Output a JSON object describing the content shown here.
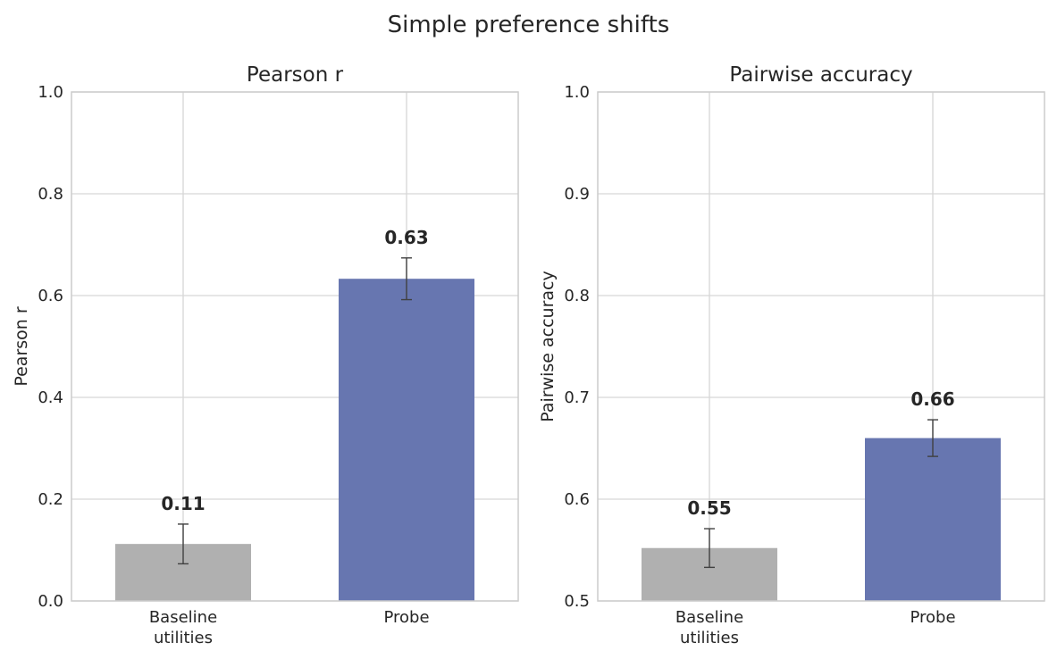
{
  "figure": {
    "suptitle": "Simple preference shifts"
  },
  "chart_data": [
    {
      "type": "bar",
      "title": "Pearson r",
      "ylabel": "Pearson r",
      "xlabel": "",
      "ylim": [
        0.0,
        1.0
      ],
      "yticks": [
        0.0,
        0.2,
        0.4,
        0.6,
        0.8,
        1.0
      ],
      "ytick_labels": [
        "0.0",
        "0.2",
        "0.4",
        "0.6",
        "0.8",
        "1.0"
      ],
      "categories": [
        [
          "Baseline",
          "utilities"
        ],
        [
          "Probe"
        ]
      ],
      "values": [
        0.112,
        0.633
      ],
      "error": [
        0.039,
        0.041
      ],
      "data_labels": [
        "0.11",
        "0.63"
      ],
      "colors": [
        "#b0b0b0",
        "#6776b0"
      ],
      "grid": true
    },
    {
      "type": "bar",
      "title": "Pairwise accuracy",
      "ylabel": "Pairwise accuracy",
      "xlabel": "",
      "ylim": [
        0.5,
        1.0
      ],
      "yticks": [
        0.5,
        0.6,
        0.7,
        0.8,
        0.9,
        1.0
      ],
      "ytick_labels": [
        "0.5",
        "0.6",
        "0.7",
        "0.8",
        "0.9",
        "1.0"
      ],
      "categories": [
        [
          "Baseline",
          "utilities"
        ],
        [
          "Probe"
        ]
      ],
      "values": [
        0.552,
        0.66
      ],
      "error": [
        0.019,
        0.018
      ],
      "data_labels": [
        "0.55",
        "0.66"
      ],
      "colors": [
        "#b0b0b0",
        "#6776b0"
      ],
      "grid": true
    }
  ]
}
